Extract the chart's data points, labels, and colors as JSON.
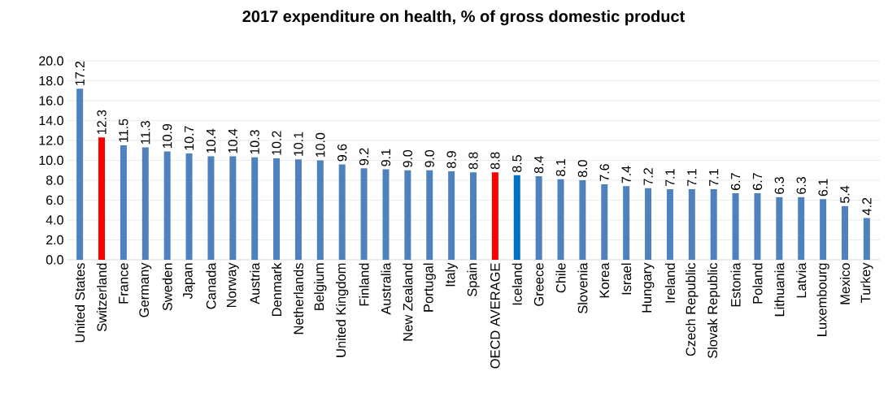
{
  "chart_data": {
    "type": "bar",
    "title": "2017 expenditure on health, % of gross domestic product",
    "categories": [
      "United States",
      "Switzerland",
      "France",
      "Germany",
      "Sweden",
      "Japan",
      "Canada",
      "Norway",
      "Austria",
      "Denmark",
      "Netherlands",
      "Belgium",
      "United Kingdom",
      "Finland",
      "Australia",
      "New Zealand",
      "Portugal",
      "Italy",
      "Spain",
      "OECD AVERAGE",
      "Iceland",
      "Greece",
      "Chile",
      "Slovenia",
      "Korea",
      "Israel",
      "Hungary",
      "Ireland",
      "Czech Republic",
      "Slovak Republic",
      "Estonia",
      "Poland",
      "Lithuania",
      "Latvia",
      "Luxembourg",
      "Mexico",
      "Turkey"
    ],
    "values": [
      17.2,
      12.3,
      11.5,
      11.3,
      10.9,
      10.7,
      10.4,
      10.4,
      10.3,
      10.2,
      10.1,
      10.0,
      9.6,
      9.2,
      9.1,
      9.0,
      9.0,
      8.9,
      8.8,
      8.8,
      8.5,
      8.4,
      8.1,
      8.0,
      7.6,
      7.4,
      7.2,
      7.1,
      7.1,
      7.1,
      6.7,
      6.7,
      6.3,
      6.3,
      6.1,
      5.4,
      4.2
    ],
    "value_labels": [
      "17.2",
      "12.3",
      "11.5",
      "11.3",
      "10.9",
      "10.7",
      "10.4",
      "10.4",
      "10.3",
      "10.2",
      "10.1",
      "10.0",
      "9.6",
      "9.2",
      "9.1",
      "9.0",
      "9.0",
      "8.9",
      "8.8",
      "8.8",
      "8.5",
      "8.4",
      "8.1",
      "8.0",
      "7.6",
      "7.4",
      "7.2",
      "7.1",
      "7.1",
      "7.1",
      "6.7",
      "6.7",
      "6.3",
      "6.3",
      "6.1",
      "5.4",
      "4.2"
    ],
    "colors": [
      "#4f81bd",
      "#ff0000",
      "#4f81bd",
      "#4f81bd",
      "#4f81bd",
      "#4f81bd",
      "#4f81bd",
      "#4f81bd",
      "#4f81bd",
      "#4f81bd",
      "#4f81bd",
      "#4f81bd",
      "#4f81bd",
      "#4f81bd",
      "#4f81bd",
      "#4f81bd",
      "#4f81bd",
      "#4f81bd",
      "#4f81bd",
      "#ff0000",
      "#0070c0",
      "#4f81bd",
      "#4f81bd",
      "#4f81bd",
      "#4f81bd",
      "#4f81bd",
      "#4f81bd",
      "#4f81bd",
      "#4f81bd",
      "#4f81bd",
      "#4f81bd",
      "#4f81bd",
      "#4f81bd",
      "#4f81bd",
      "#4f81bd",
      "#4f81bd",
      "#4f81bd"
    ],
    "ylim": [
      0,
      20
    ],
    "yticks": [
      {
        "value": 0,
        "label": "0.0"
      },
      {
        "value": 2,
        "label": "2.0"
      },
      {
        "value": 4,
        "label": "4.0"
      },
      {
        "value": 6,
        "label": "6.0"
      },
      {
        "value": 8,
        "label": "8.0"
      },
      {
        "value": 10,
        "label": "10.0"
      },
      {
        "value": 12,
        "label": "12.0"
      },
      {
        "value": 14,
        "label": "14.0"
      },
      {
        "value": 16,
        "label": "16.0"
      },
      {
        "value": 18,
        "label": "18.0"
      },
      {
        "value": 20,
        "label": "20.0"
      }
    ],
    "grid": "y"
  }
}
